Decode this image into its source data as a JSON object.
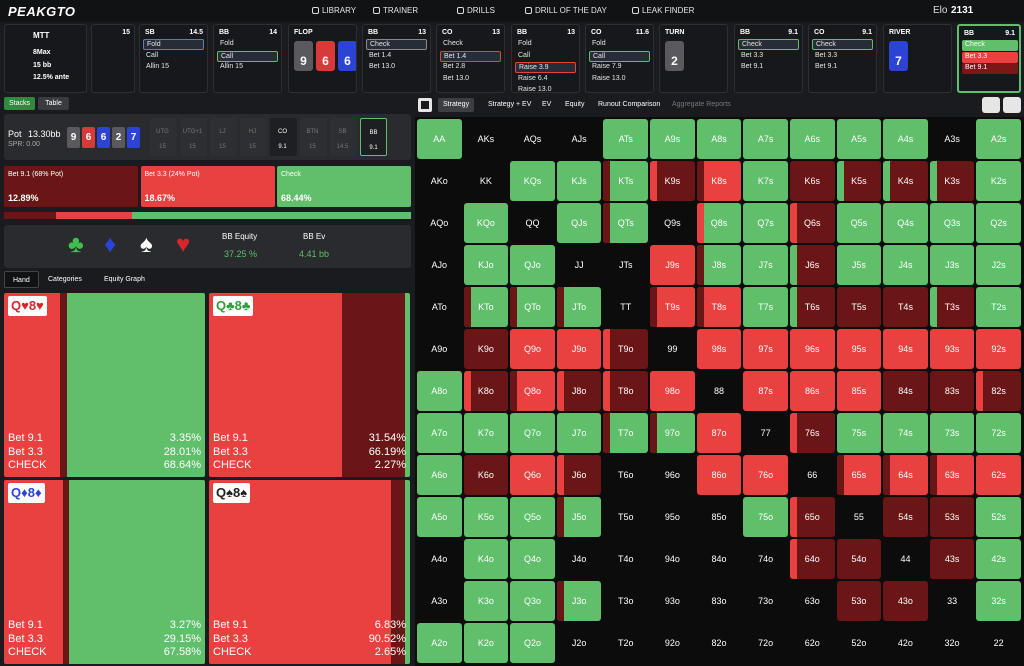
{
  "nav": {
    "logo": "PEAKGTO",
    "links": [
      "LIBRARY",
      "TRAINER",
      "DRILLS",
      "DRILL OF THE DAY",
      "LEAK FINDER"
    ],
    "elo_label": "Elo",
    "elo": "2131"
  },
  "game": {
    "format": "MTT",
    "players": "8Max",
    "stack": "15 bb",
    "ante": "12.5% ante"
  },
  "actions": [
    {
      "stack": "15"
    },
    {
      "pos": "SB",
      "stack": "14.5",
      "options": [
        "Fold",
        "Call",
        "Allin 15"
      ],
      "selected": 0,
      "selected_color": "#5b7fb0"
    },
    {
      "pos": "BB",
      "stack": "14",
      "options": [
        "Fold",
        "Call",
        "Allin 15"
      ],
      "selected": 1,
      "selected_color": "#5fbf6a"
    },
    {
      "street": "FLOP",
      "cards": [
        {
          "rank": "9",
          "color": "#5a5a5e"
        },
        {
          "rank": "6",
          "color": "#d83a3a"
        },
        {
          "rank": "6",
          "color": "#2c44d6"
        }
      ]
    },
    {
      "pos": "BB",
      "stack": "13",
      "options": [
        "Check",
        "Bet 1.4",
        "Bet 13.0"
      ],
      "selected": 0,
      "selected_color": "#8a8a8a"
    },
    {
      "pos": "CO",
      "stack": "13",
      "options": [
        "Check",
        "Bet 1.4",
        "Bet 2.8",
        "Bet 13.0"
      ],
      "selected": 1,
      "selected_color": "#e8413f"
    },
    {
      "pos": "BB",
      "stack": "13",
      "options": [
        "Fold",
        "Call",
        "Raise 3.9",
        "Raise 6.4",
        "Raise 13.0"
      ],
      "selected": 2,
      "selected_color": "#e8413f"
    },
    {
      "pos": "CO",
      "stack": "11.6",
      "options": [
        "Fold",
        "Call",
        "Raise 7.9",
        "Raise 13.0"
      ],
      "selected": 1,
      "selected_color": "#5fbf6a"
    },
    {
      "street": "TURN",
      "cards": [
        {
          "rank": "2",
          "color": "#5a5a5e"
        }
      ]
    },
    {
      "pos": "BB",
      "stack": "9.1",
      "options": [
        "Check",
        "Bet 3.3",
        "Bet 9.1"
      ],
      "selected": 0,
      "selected_color": "#5fbf6a"
    },
    {
      "pos": "CO",
      "stack": "9.1",
      "options": [
        "Check",
        "Bet 3.3",
        "Bet 9.1"
      ],
      "selected": 0,
      "selected_color": "#5fbf6a"
    },
    {
      "street": "RIVER",
      "cards": [
        {
          "rank": "7",
          "color": "#2c44d6"
        }
      ]
    },
    {
      "pos": "BB",
      "stack": "9.1",
      "options": [
        "Check",
        "Bet 3.3",
        "Bet 9.1"
      ],
      "active": true,
      "option_colors": [
        "#5fbf6a",
        "#e8413f",
        "#7a1717"
      ]
    }
  ],
  "view_tabs": [
    "Stacks",
    "Table"
  ],
  "pot": {
    "label": "Pot",
    "value": "13.30bb",
    "spr": "SPR: 0.00"
  },
  "board": [
    {
      "rank": "9",
      "color": "#5a5a5e"
    },
    {
      "rank": "6",
      "color": "#d83a3a"
    },
    {
      "rank": "6",
      "color": "#2c44d6"
    },
    {
      "rank": "2",
      "color": "#5a5a5e"
    },
    {
      "rank": "7",
      "color": "#2c44d6"
    }
  ],
  "seats": [
    {
      "pos": "UTG",
      "stack": "15"
    },
    {
      "pos": "UTG+1",
      "stack": "15"
    },
    {
      "pos": "LJ",
      "stack": "15"
    },
    {
      "pos": "HJ",
      "stack": "15"
    },
    {
      "pos": "CO",
      "stack": "9.1",
      "live": true
    },
    {
      "pos": "BTN",
      "stack": "15"
    },
    {
      "pos": "SB",
      "stack": "14.5"
    },
    {
      "pos": "BB",
      "stack": "9.1",
      "live": true,
      "to_act": true
    }
  ],
  "strategy": [
    {
      "name": "Bet 9.1 (68% Pot)",
      "freq": {
        "value": 12.89,
        "label": "12.89%"
      },
      "color": "#6b1616"
    },
    {
      "name": "Bet 3.3 (24% Pot)",
      "freq": {
        "value": 18.67,
        "label": "18.67%"
      },
      "color": "#e8413f"
    },
    {
      "name": "Check",
      "freq": {
        "value": 68.44,
        "label": "68.44%"
      },
      "color": "#5fbf6a"
    }
  ],
  "equity": {
    "suits": [
      {
        "symbol": "♣",
        "color": "#3fbf4f"
      },
      {
        "symbol": "♦",
        "color": "#2c44d6"
      },
      {
        "symbol": "♠",
        "color": "#ffffff"
      },
      {
        "symbol": "♥",
        "color": "#d8262a"
      }
    ],
    "equity_label": "BB Equity",
    "equity": "37.25 %",
    "ev_label": "BB Ev",
    "ev": "4.41 bb"
  },
  "hand_tabs": [
    "Hand",
    "Categories",
    "Equity Graph"
  ],
  "hand_action_labels": [
    "Bet 9.1",
    "Bet 3.3",
    "CHECK"
  ],
  "hands": [
    {
      "hand": "Q♥8♥",
      "color": "#d8262a",
      "freqs": [
        {
          "value": 3.35,
          "label": "3.35%"
        },
        {
          "value": 28.01,
          "label": "28.01%"
        },
        {
          "value": 68.64,
          "label": "68.64%"
        }
      ]
    },
    {
      "hand": "Q♣8♣",
      "color": "#2f9e3a",
      "freqs": [
        {
          "value": 31.54,
          "label": "31.54%"
        },
        {
          "value": 66.19,
          "label": "66.19%"
        },
        {
          "value": 2.27,
          "label": "2.27%"
        }
      ]
    },
    {
      "hand": "Q♦8♦",
      "color": "#2c44d6",
      "freqs": [
        {
          "value": 3.27,
          "label": "3.27%"
        },
        {
          "value": 29.15,
          "label": "29.15%"
        },
        {
          "value": 67.58,
          "label": "67.58%"
        }
      ]
    },
    {
      "hand": "Q♠8♠",
      "color": "#222222",
      "freqs": [
        {
          "value": 6.83,
          "label": "6.83%"
        },
        {
          "value": 90.52,
          "label": "90.52%"
        },
        {
          "value": 2.65,
          "label": "2.65%"
        }
      ]
    }
  ],
  "grid_tabs": [
    "Strategy",
    "Strategy + EV",
    "EV",
    "Equity",
    "Runout Comparison",
    "Aggregate Reports"
  ],
  "grid_active_tab": 0,
  "grid": {
    "palette": {
      "g": "#5fbf6a",
      "r": "#e8413f",
      "d": "#6b1616",
      "k": "#0c0c0d"
    },
    "labels": [
      [
        "AA",
        "AKs",
        "AQs",
        "AJs",
        "ATs",
        "A9s",
        "A8s",
        "A7s",
        "A6s",
        "A5s",
        "A4s",
        "A3s",
        "A2s"
      ],
      [
        "AKo",
        "KK",
        "KQs",
        "KJs",
        "KTs",
        "K9s",
        "K8s",
        "K7s",
        "K6s",
        "K5s",
        "K4s",
        "K3s",
        "K2s"
      ],
      [
        "AQo",
        "KQo",
        "QQ",
        "QJs",
        "QTs",
        "Q9s",
        "Q8s",
        "Q7s",
        "Q6s",
        "Q5s",
        "Q4s",
        "Q3s",
        "Q2s"
      ],
      [
        "AJo",
        "KJo",
        "QJo",
        "JJ",
        "JTs",
        "J9s",
        "J8s",
        "J7s",
        "J6s",
        "J5s",
        "J4s",
        "J3s",
        "J2s"
      ],
      [
        "ATo",
        "KTo",
        "QTo",
        "JTo",
        "TT",
        "T9s",
        "T8s",
        "T7s",
        "T6s",
        "T5s",
        "T4s",
        "T3s",
        "T2s"
      ],
      [
        "A9o",
        "K9o",
        "Q9o",
        "J9o",
        "T9o",
        "99",
        "98s",
        "97s",
        "96s",
        "95s",
        "94s",
        "93s",
        "92s"
      ],
      [
        "A8o",
        "K8o",
        "Q8o",
        "J8o",
        "T8o",
        "98o",
        "88",
        "87s",
        "86s",
        "85s",
        "84s",
        "83s",
        "82s"
      ],
      [
        "A7o",
        "K7o",
        "Q7o",
        "J7o",
        "T7o",
        "97o",
        "87o",
        "77",
        "76s",
        "75s",
        "74s",
        "73s",
        "72s"
      ],
      [
        "A6o",
        "K6o",
        "Q6o",
        "J6o",
        "T6o",
        "96o",
        "86o",
        "76o",
        "66",
        "65s",
        "64s",
        "63s",
        "62s"
      ],
      [
        "A5o",
        "K5o",
        "Q5o",
        "J5o",
        "T5o",
        "95o",
        "85o",
        "75o",
        "65o",
        "55",
        "54s",
        "53s",
        "52s"
      ],
      [
        "A4o",
        "K4o",
        "Q4o",
        "J4o",
        "T4o",
        "94o",
        "84o",
        "74o",
        "64o",
        "54o",
        "44",
        "43s",
        "42s"
      ],
      [
        "A3o",
        "K3o",
        "Q3o",
        "J3o",
        "T3o",
        "93o",
        "83o",
        "73o",
        "63o",
        "53o",
        "43o",
        "33",
        "32s"
      ],
      [
        "A2o",
        "K2o",
        "Q2o",
        "J2o",
        "T2o",
        "92o",
        "82o",
        "72o",
        "62o",
        "52o",
        "42o",
        "32o",
        "22"
      ]
    ],
    "cells": [
      [
        "g",
        "k",
        "k",
        "k",
        "g",
        "g",
        "g",
        "g",
        "g",
        "g",
        "g",
        "k",
        "g"
      ],
      [
        "k",
        "k",
        "g",
        "g",
        "gd",
        "dr",
        "rd",
        "g",
        "d",
        "dg",
        "dg",
        "dg",
        "g"
      ],
      [
        "k",
        "g",
        "k",
        "g",
        "gd",
        "k",
        "gr",
        "g",
        "dr",
        "g",
        "g",
        "g",
        "g"
      ],
      [
        "k",
        "g",
        "g",
        "k",
        "k",
        "r",
        "gd",
        "g",
        "dg",
        "g",
        "g",
        "g",
        "g"
      ],
      [
        "k",
        "gd",
        "gd",
        "gd",
        "k",
        "rd",
        "rd",
        "g",
        "dg",
        "d",
        "d",
        "dg",
        "g"
      ],
      [
        "k",
        "d",
        "r",
        "r",
        "dr",
        "k",
        "r",
        "r",
        "r",
        "r",
        "r",
        "r",
        "r"
      ],
      [
        "g",
        "dr",
        "rd",
        "dr",
        "dr",
        "r",
        "k",
        "r",
        "r",
        "r",
        "d",
        "d",
        "dr"
      ],
      [
        "g",
        "g",
        "g",
        "g",
        "gd",
        "gd",
        "r",
        "k",
        "dr",
        "g",
        "g",
        "g",
        "g"
      ],
      [
        "g",
        "d",
        "r",
        "dr",
        "k",
        "k",
        "r",
        "r",
        "k",
        "rd",
        "rd",
        "rd",
        "r"
      ],
      [
        "g",
        "g",
        "g",
        "gd",
        "k",
        "k",
        "k",
        "g",
        "dr",
        "k",
        "d",
        "d",
        "g"
      ],
      [
        "k",
        "g",
        "g",
        "k",
        "k",
        "k",
        "k",
        "k",
        "dr",
        "d",
        "k",
        "d",
        "g"
      ],
      [
        "k",
        "g",
        "g",
        "gd",
        "k",
        "k",
        "k",
        "k",
        "k",
        "d",
        "d",
        "k",
        "g"
      ],
      [
        "g",
        "g",
        "g",
        "k",
        "k",
        "k",
        "k",
        "k",
        "k",
        "k",
        "k",
        "k",
        "k"
      ]
    ]
  }
}
